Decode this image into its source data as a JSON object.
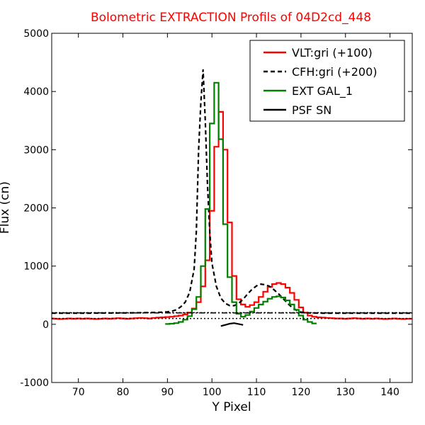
{
  "chart_data": {
    "type": "line",
    "title": "Bolometric EXTRACTION Profils of 04D2cd_448",
    "title_color": "#ff0000",
    "xlabel": "Y Pixel",
    "ylabel": "Flux (cn)",
    "xlim": [
      64,
      145
    ],
    "ylim": [
      -1000,
      5000
    ],
    "xticks": [
      70,
      80,
      90,
      100,
      110,
      120,
      130,
      140
    ],
    "yticks": [
      -1000,
      0,
      1000,
      2000,
      3000,
      4000,
      5000
    ],
    "grid": false,
    "legend_position": "top-right",
    "series": [
      {
        "name": "VLT:gri (+100)",
        "color": "#ff0000",
        "style": "steps-solid",
        "x": [
          64,
          65,
          66,
          67,
          68,
          69,
          70,
          71,
          72,
          73,
          74,
          75,
          76,
          77,
          78,
          79,
          80,
          81,
          82,
          83,
          84,
          85,
          86,
          87,
          88,
          89,
          90,
          91,
          92,
          93,
          94,
          95,
          96,
          97,
          98,
          99,
          100,
          101,
          102,
          103,
          104,
          105,
          106,
          107,
          108,
          109,
          110,
          111,
          112,
          113,
          114,
          115,
          116,
          117,
          118,
          119,
          120,
          121,
          122,
          123,
          124,
          125,
          126,
          127,
          128,
          129,
          130,
          131,
          132,
          133,
          134,
          135,
          136,
          137,
          138,
          139,
          140,
          141,
          142,
          143,
          144,
          145
        ],
        "y": [
          100,
          95,
          90,
          95,
          100,
          95,
          100,
          95,
          100,
          95,
          90,
          95,
          100,
          95,
          100,
          105,
          100,
          95,
          100,
          105,
          110,
          105,
          100,
          110,
          115,
          120,
          125,
          130,
          140,
          150,
          170,
          200,
          270,
          380,
          650,
          1100,
          1950,
          3050,
          3650,
          3000,
          1750,
          830,
          430,
          340,
          300,
          330,
          380,
          470,
          560,
          640,
          690,
          710,
          690,
          630,
          540,
          420,
          290,
          200,
          150,
          130,
          120,
          115,
          110,
          105,
          100,
          100,
          95,
          100,
          105,
          100,
          95,
          100,
          95,
          100,
          95,
          90,
          95,
          100,
          95,
          90,
          95,
          95
        ]
      },
      {
        "name": "CFH:gri (+200)",
        "color": "#000000",
        "style": "dashed",
        "x": [
          64,
          70,
          80,
          85,
          88,
          90,
          91,
          92,
          93,
          94,
          95,
          96,
          96.5,
          97,
          97.5,
          98,
          98.5,
          99,
          99.5,
          100,
          101,
          102,
          103,
          104,
          105,
          106,
          107,
          108,
          109,
          110,
          111,
          112,
          113,
          114,
          115,
          116,
          117,
          118,
          119,
          120,
          121,
          122,
          125,
          130,
          140,
          145
        ],
        "y": [
          190,
          190,
          195,
          200,
          205,
          215,
          225,
          250,
          300,
          380,
          550,
          950,
          1600,
          3000,
          3800,
          4380,
          3500,
          2400,
          1600,
          1050,
          650,
          450,
          360,
          320,
          320,
          360,
          430,
          520,
          600,
          660,
          690,
          680,
          650,
          590,
          520,
          440,
          360,
          290,
          240,
          210,
          200,
          195,
          192,
          190,
          190,
          190
        ]
      },
      {
        "name": "EXT GAL_1",
        "color": "#008000",
        "style": "steps-solid",
        "x": [
          90,
          91,
          92,
          93,
          94,
          95,
          96,
          97,
          98,
          99,
          100,
          101,
          102,
          103,
          104,
          105,
          106,
          107,
          108,
          109,
          110,
          111,
          112,
          113,
          114,
          115,
          116,
          117,
          118,
          119,
          120,
          121,
          122,
          123
        ],
        "y": [
          5,
          10,
          20,
          40,
          80,
          140,
          260,
          470,
          1000,
          1980,
          3450,
          4150,
          3180,
          1720,
          810,
          380,
          180,
          130,
          160,
          220,
          280,
          340,
          390,
          440,
          470,
          480,
          460,
          410,
          340,
          250,
          150,
          80,
          40,
          15
        ]
      },
      {
        "name": "PSF SN",
        "color": "#000000",
        "style": "solid",
        "x": [
          102,
          103,
          104,
          105,
          106,
          107
        ],
        "y": [
          -30,
          -10,
          10,
          20,
          5,
          -10
        ]
      },
      {
        "name": "",
        "color": "#000000",
        "style": "dotted",
        "x": [
          64,
          145
        ],
        "y": [
          100,
          100
        ]
      },
      {
        "name": "",
        "color": "#000000",
        "style": "dotted",
        "x": [
          64,
          145
        ],
        "y": [
          200,
          200
        ]
      },
      {
        "name": "",
        "color": "#000000",
        "style": "dashdot",
        "x": [
          64,
          145
        ],
        "y": [
          195,
          195
        ]
      }
    ]
  }
}
